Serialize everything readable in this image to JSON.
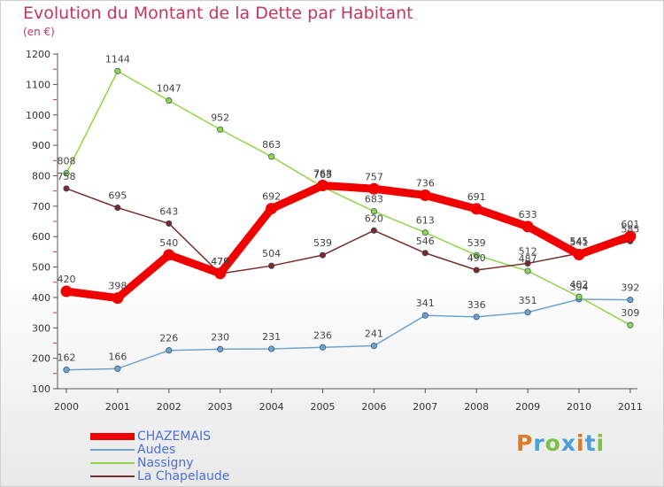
{
  "title": "Evolution du Montant de la Dette par Habitant",
  "unit": "(en €)",
  "brand": {
    "letters": [
      "P",
      "r",
      "o",
      "x",
      "i",
      "t",
      "i"
    ],
    "colors": [
      "#e07a22",
      "#4aa0d8",
      "#7cc242",
      "#4aa0d8",
      "#e07a22",
      "#4aa0d8",
      "#7cc242"
    ]
  },
  "chart_data": {
    "type": "line",
    "x": [
      "2000",
      "2001",
      "2002",
      "2003",
      "2004",
      "2005",
      "2006",
      "2007",
      "2008",
      "2009",
      "2010",
      "2011"
    ],
    "ylim": [
      100,
      1200
    ],
    "yticks": [
      100,
      200,
      300,
      400,
      500,
      600,
      700,
      800,
      900,
      1000,
      1100,
      1200
    ],
    "grid": false,
    "legend_position": "bottom-left",
    "series": [
      {
        "name": "CHAZEMAIS",
        "color": "#f20000",
        "values": [
          420,
          398,
          540,
          479,
          692,
          768,
          757,
          736,
          691,
          633,
          541,
          601
        ]
      },
      {
        "name": "Audes",
        "color": "#6fa3cf",
        "values": [
          162,
          166,
          226,
          230,
          231,
          236,
          241,
          341,
          336,
          351,
          394,
          392
        ]
      },
      {
        "name": "Nassigny",
        "color": "#8fd64a",
        "values": [
          808,
          1144,
          1047,
          952,
          863,
          763,
          683,
          613,
          539,
          487,
          402,
          309
        ]
      },
      {
        "name": "La Chapelaude",
        "color": "#7a2a2a",
        "values": [
          758,
          695,
          643,
          478,
          504,
          539,
          620,
          546,
          490,
          512,
          545,
          585
        ]
      }
    ]
  }
}
